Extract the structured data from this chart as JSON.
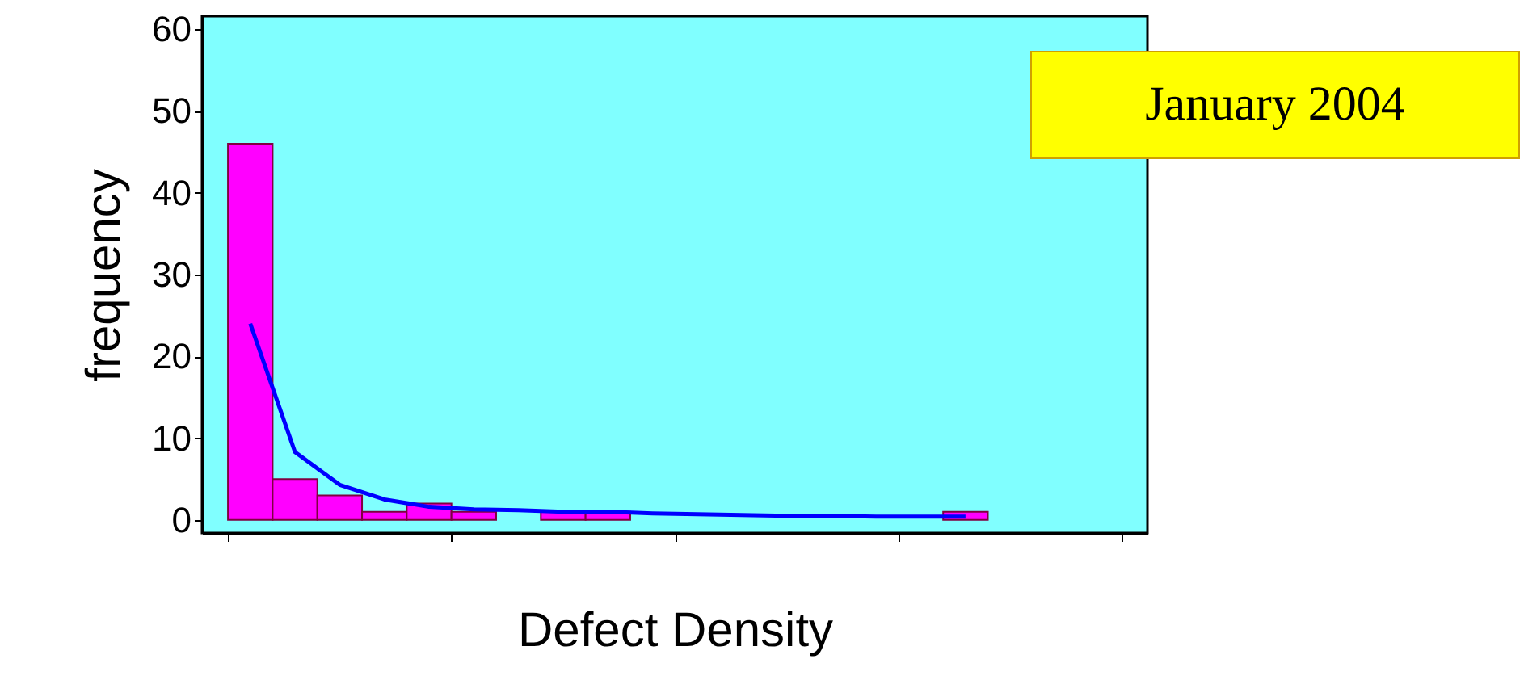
{
  "chart_data": {
    "type": "bar",
    "xlabel": "Defect Density",
    "ylabel": "frequency",
    "categories": [
      null,
      null,
      null,
      null,
      null,
      null,
      null,
      null,
      null,
      null,
      null,
      null,
      null,
      null,
      null,
      null,
      null
    ],
    "series": [
      {
        "type": "bar",
        "color": "#ff00ff",
        "values": [
          46,
          5,
          3,
          1,
          2,
          1,
          0,
          1,
          1,
          0,
          0,
          0,
          0,
          0,
          0,
          0,
          1
        ]
      },
      {
        "type": "line",
        "color": "#0000ff",
        "values": [
          24,
          8.3,
          4.3,
          2.5,
          1.6,
          1.3,
          1.2,
          1,
          1,
          0.8,
          0.7,
          0.6,
          0.5,
          0.5,
          0.4,
          0.4,
          0.4
        ]
      }
    ],
    "ylim": [
      -1.6,
      61.6
    ],
    "yticks": [
      0,
      10,
      20,
      30,
      40,
      50,
      60
    ],
    "tick_labels": "y",
    "grid": false,
    "annotations": [
      "January 2004"
    ]
  }
}
